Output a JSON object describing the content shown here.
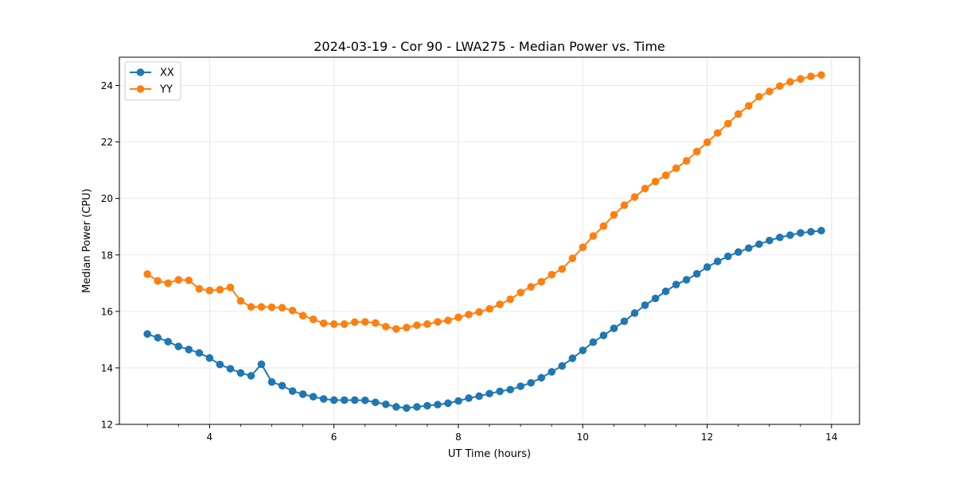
{
  "chart_data": {
    "type": "line",
    "title": "2024-03-19 - Cor 90 - LWA275 - Median Power vs. Time",
    "xlabel": "UT Time (hours)",
    "ylabel": "Median Power (CPU)",
    "xlim": [
      2.55,
      14.45
    ],
    "ylim": [
      12,
      25
    ],
    "xticks": [
      4,
      6,
      8,
      10,
      12,
      14
    ],
    "xtick_labels": [
      "4",
      "6",
      "8",
      "10",
      "12",
      "14"
    ],
    "yticks": [
      12,
      14,
      16,
      18,
      20,
      22,
      24
    ],
    "ytick_labels": [
      "12",
      "14",
      "16",
      "18",
      "20",
      "22",
      "24"
    ],
    "grid": true,
    "legend_position": "top-left",
    "x_start": 3.0,
    "x_step": 0.1667,
    "series": [
      {
        "name": "XX",
        "color": "#1f77b4",
        "marker": "circle",
        "values": [
          15.2,
          15.07,
          14.93,
          14.76,
          14.65,
          14.53,
          14.35,
          14.12,
          13.97,
          13.82,
          13.72,
          14.13,
          13.5,
          13.37,
          13.18,
          13.07,
          12.98,
          12.9,
          12.86,
          12.86,
          12.86,
          12.85,
          12.78,
          12.71,
          12.62,
          12.58,
          12.62,
          12.66,
          12.7,
          12.75,
          12.83,
          12.93,
          13.0,
          13.09,
          13.17,
          13.23,
          13.35,
          13.47,
          13.65,
          13.86,
          14.07,
          14.34,
          14.62,
          14.91,
          15.15,
          15.4,
          15.65,
          15.94,
          16.22,
          16.46,
          16.71,
          16.95,
          17.12,
          17.33,
          17.57,
          17.77,
          17.95,
          18.1,
          18.24,
          18.38,
          18.51,
          18.62,
          18.7,
          18.78,
          18.82,
          18.86
        ]
      },
      {
        "name": "YY",
        "color": "#ff7f0e",
        "marker": "circle",
        "values": [
          17.32,
          17.08,
          17.0,
          17.12,
          17.1,
          16.8,
          16.74,
          16.77,
          16.85,
          16.37,
          16.16,
          16.16,
          16.15,
          16.13,
          16.03,
          15.85,
          15.72,
          15.58,
          15.55,
          15.55,
          15.62,
          15.63,
          15.59,
          15.46,
          15.38,
          15.43,
          15.51,
          15.55,
          15.63,
          15.68,
          15.79,
          15.89,
          15.98,
          16.09,
          16.25,
          16.43,
          16.67,
          16.87,
          17.05,
          17.3,
          17.5,
          17.88,
          18.27,
          18.67,
          19.02,
          19.42,
          19.76,
          20.05,
          20.35,
          20.6,
          20.82,
          21.07,
          21.33,
          21.66,
          21.99,
          22.32,
          22.65,
          22.99,
          23.28,
          23.6,
          23.79,
          23.98,
          24.13,
          24.23,
          24.32,
          24.37
        ]
      }
    ]
  }
}
